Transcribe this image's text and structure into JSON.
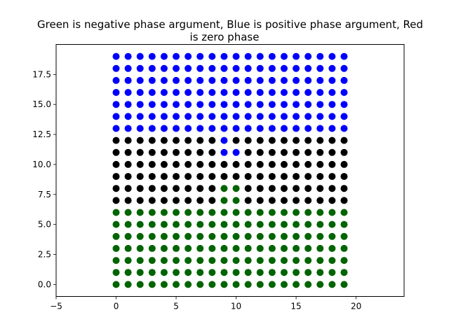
{
  "chart_data": {
    "type": "scatter",
    "title_lines": [
      "Green is negative phase argument, Blue is positive phase argument, Red",
      "is zero phase"
    ],
    "xlabel": "",
    "ylabel": "",
    "xlim": [
      -5,
      24
    ],
    "ylim": [
      -1,
      20
    ],
    "grid": false,
    "xticks": [
      -5,
      0,
      5,
      10,
      15,
      20
    ],
    "xtick_labels": [
      "−5",
      "0",
      "5",
      "10",
      "15",
      "20"
    ],
    "yticks": [
      0,
      2.5,
      5,
      7.5,
      10,
      12.5,
      15,
      17.5
    ],
    "ytick_labels": [
      "0.0",
      "2.5",
      "5.0",
      "7.5",
      "10.0",
      "12.5",
      "15.0",
      "17.5"
    ],
    "grid_x": [
      0,
      1,
      2,
      3,
      4,
      5,
      6,
      7,
      8,
      9,
      10,
      11,
      12,
      13,
      14,
      15,
      16,
      17,
      18,
      19
    ],
    "grid_y": [
      0,
      1,
      2,
      3,
      4,
      5,
      6,
      7,
      8,
      9,
      10,
      11,
      12,
      13,
      14,
      15,
      16,
      17,
      18,
      19
    ],
    "colors": {
      "blue": "#0000ff",
      "black": "#000000",
      "green": "#006400"
    },
    "color_rules": [
      {
        "color": "blue",
        "y_from": 13,
        "y_to": 19
      },
      {
        "color": "black",
        "y_from": 7,
        "y_to": 12
      },
      {
        "color": "green",
        "y_from": 0,
        "y_to": 6
      }
    ],
    "exceptions": [
      {
        "x": 9,
        "y": 11,
        "color": "blue"
      },
      {
        "x": 10,
        "y": 11,
        "color": "blue"
      },
      {
        "x": 9,
        "y": 12,
        "color": "blue"
      },
      {
        "x": 9,
        "y": 8,
        "color": "green"
      },
      {
        "x": 10,
        "y": 8,
        "color": "green"
      },
      {
        "x": 9,
        "y": 7,
        "color": "green"
      },
      {
        "x": 10,
        "y": 7,
        "color": "green"
      }
    ]
  }
}
